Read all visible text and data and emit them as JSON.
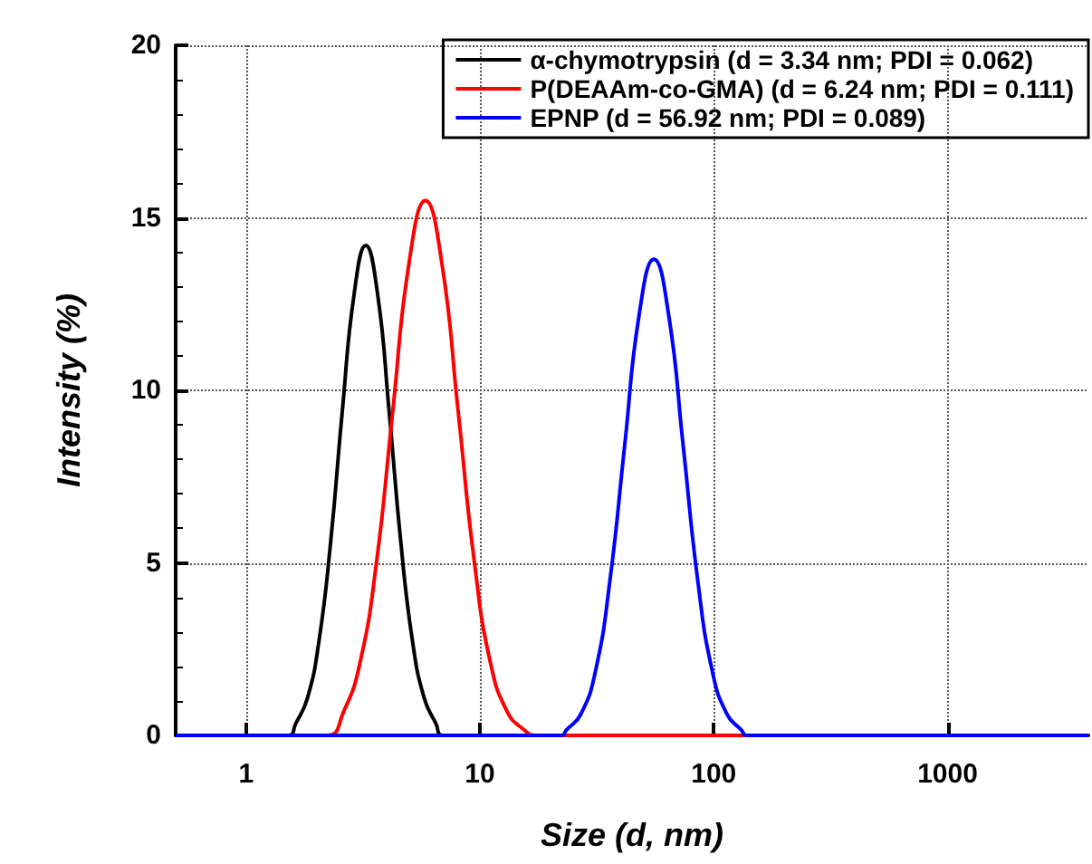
{
  "chart_data": {
    "type": "line",
    "xlabel": "Size (d, nm)",
    "ylabel": "Intensity (%)",
    "log": "x",
    "xlim": [
      0.5,
      4000
    ],
    "xticks": [
      1,
      10,
      100,
      1000
    ],
    "ylim": [
      0,
      20
    ],
    "yticks": [
      0,
      5,
      10,
      15,
      20
    ],
    "grid": true,
    "legend": "top right",
    "marker": "none",
    "line_style": "solid",
    "series": [
      {
        "name": "α-chymotrypsin (d = 3.34 nm; PDI = 0.062)",
        "color": "#000000",
        "x": [
          0.5,
          1.52,
          1.63,
          1.83,
          2.05,
          2.3,
          2.58,
          2.9,
          3.25,
          3.65,
          4.09,
          4.59,
          5.15,
          5.78,
          6.49,
          6.95,
          4000
        ],
        "values": [
          0,
          0,
          0.34,
          1.08,
          2.73,
          5.6,
          9.4,
          12.8,
          14.2,
          12.8,
          9.4,
          5.6,
          2.73,
          1.08,
          0.34,
          0,
          0
        ]
      },
      {
        "name": "P(DEAAm-co-GMA) (d = 6.24 nm; PDI = 0.111)",
        "color": "#ff0000",
        "x": [
          0.5,
          2.22,
          2.61,
          3.07,
          3.61,
          4.24,
          4.98,
          5.85,
          6.87,
          8.07,
          9.48,
          11.1,
          13.1,
          15.4,
          17.3,
          4000
        ],
        "values": [
          0,
          0,
          0.68,
          2.1,
          5.0,
          9.4,
          13.7,
          15.5,
          13.7,
          9.4,
          5.0,
          2.1,
          0.68,
          0.17,
          0,
          0
        ]
      },
      {
        "name": "EPNP (d = 56.92 nm; PDI = 0.089)",
        "color": "#0000ff",
        "x": [
          0.5,
          22.4,
          23.4,
          27.0,
          31.2,
          36.0,
          41.6,
          48.0,
          55.5,
          64.1,
          74.0,
          85.4,
          98.6,
          114,
          131.5,
          138,
          4000
        ],
        "values": [
          0,
          0,
          0.15,
          0.61,
          1.86,
          4.5,
          8.4,
          12.2,
          13.8,
          12.2,
          8.4,
          4.5,
          1.86,
          0.61,
          0.15,
          0,
          0
        ]
      }
    ]
  }
}
